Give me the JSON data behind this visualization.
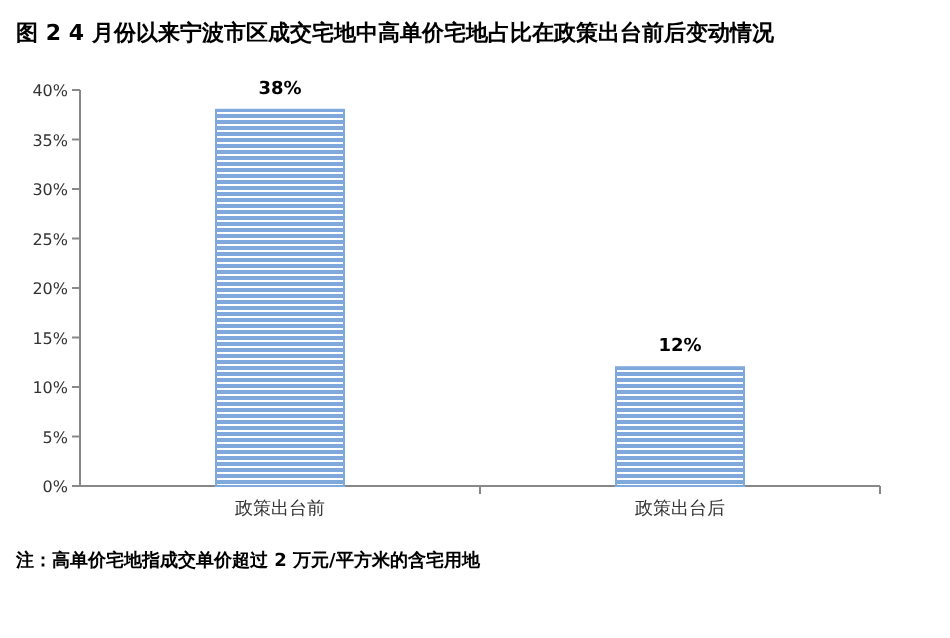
{
  "chart_data": {
    "type": "bar",
    "title": "图 2 4 月份以来宁波市区成交宅地中高单价宅地占比在政策出台前后变动情况",
    "categories": [
      "政策出台前",
      "政策出台后"
    ],
    "values": [
      38,
      12
    ],
    "value_labels": [
      "38%",
      "12%"
    ],
    "color": "#7fa8dc",
    "ylim": [
      0,
      40
    ],
    "yticks": [
      {
        "value": 0,
        "label": "0%"
      },
      {
        "value": 5,
        "label": "5%"
      },
      {
        "value": 10,
        "label": "10%"
      },
      {
        "value": 15,
        "label": "15%"
      },
      {
        "value": 20,
        "label": "20%"
      },
      {
        "value": 25,
        "label": "25%"
      },
      {
        "value": 30,
        "label": "30%"
      },
      {
        "value": 35,
        "label": "35%"
      },
      {
        "value": 40,
        "label": "40%"
      }
    ],
    "annotations": [
      "注：高单价宅地指成交单价超过 2 万元/平方米的含宅用地"
    ]
  }
}
